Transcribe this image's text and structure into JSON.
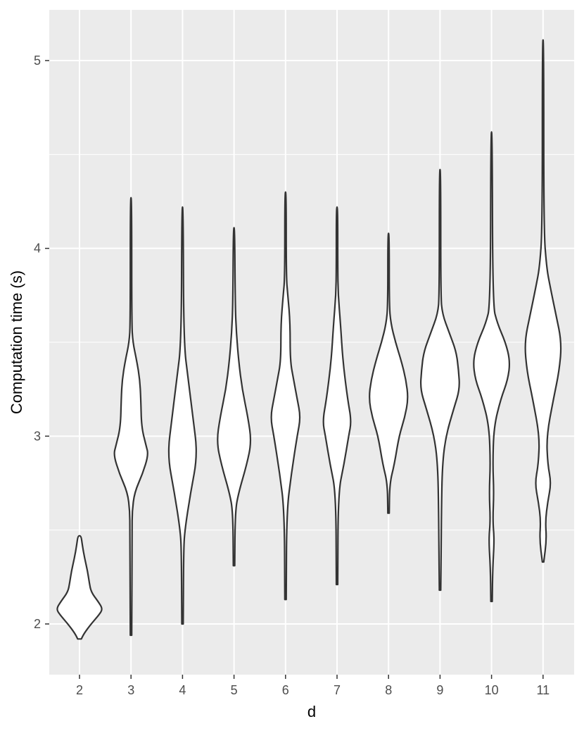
{
  "chart_data": {
    "type": "violin",
    "xlabel": "d",
    "ylabel": "Computation time (s)",
    "categories": [
      "2",
      "3",
      "4",
      "5",
      "6",
      "7",
      "8",
      "9",
      "10",
      "11"
    ],
    "yticks": [
      "2",
      "3",
      "4",
      "5"
    ],
    "ylim": [
      1.73,
      5.27
    ],
    "grid": true,
    "violins": [
      {
        "category": "2",
        "min": 1.92,
        "max": 2.47,
        "profile": [
          [
            1.92,
            0.08
          ],
          [
            1.95,
            0.2
          ],
          [
            2.0,
            0.5
          ],
          [
            2.05,
            0.85
          ],
          [
            2.08,
            1.0
          ],
          [
            2.12,
            0.8
          ],
          [
            2.17,
            0.5
          ],
          [
            2.22,
            0.42
          ],
          [
            2.28,
            0.35
          ],
          [
            2.35,
            0.22
          ],
          [
            2.42,
            0.12
          ],
          [
            2.47,
            0.07
          ]
        ]
      },
      {
        "category": "3",
        "min": 1.94,
        "max": 4.27,
        "profile": [
          [
            1.94,
            0.03
          ],
          [
            2.5,
            0.05
          ],
          [
            2.6,
            0.05
          ],
          [
            2.7,
            0.15
          ],
          [
            2.8,
            0.5
          ],
          [
            2.9,
            0.75
          ],
          [
            2.95,
            0.65
          ],
          [
            3.05,
            0.45
          ],
          [
            3.2,
            0.42
          ],
          [
            3.3,
            0.38
          ],
          [
            3.4,
            0.25
          ],
          [
            3.5,
            0.08
          ],
          [
            3.6,
            0.03
          ],
          [
            4.27,
            0.03
          ]
        ]
      },
      {
        "category": "4",
        "min": 2.0,
        "max": 4.22,
        "profile": [
          [
            2.0,
            0.03
          ],
          [
            2.4,
            0.05
          ],
          [
            2.5,
            0.1
          ],
          [
            2.7,
            0.35
          ],
          [
            2.9,
            0.65
          ],
          [
            3.1,
            0.45
          ],
          [
            3.3,
            0.25
          ],
          [
            3.5,
            0.05
          ],
          [
            4.22,
            0.03
          ]
        ]
      },
      {
        "category": "5",
        "min": 2.31,
        "max": 4.11,
        "profile": [
          [
            2.31,
            0.03
          ],
          [
            2.6,
            0.05
          ],
          [
            2.7,
            0.2
          ],
          [
            2.85,
            0.55
          ],
          [
            2.97,
            0.75
          ],
          [
            3.1,
            0.6
          ],
          [
            3.25,
            0.35
          ],
          [
            3.4,
            0.2
          ],
          [
            3.55,
            0.1
          ],
          [
            3.7,
            0.05
          ],
          [
            4.11,
            0.03
          ]
        ]
      },
      {
        "category": "6",
        "min": 2.13,
        "max": 4.3,
        "profile": [
          [
            2.13,
            0.03
          ],
          [
            2.6,
            0.05
          ],
          [
            2.8,
            0.25
          ],
          [
            3.0,
            0.5
          ],
          [
            3.1,
            0.65
          ],
          [
            3.2,
            0.5
          ],
          [
            3.3,
            0.35
          ],
          [
            3.4,
            0.2
          ],
          [
            3.6,
            0.2
          ],
          [
            3.75,
            0.1
          ],
          [
            3.85,
            0.03
          ],
          [
            4.3,
            0.03
          ]
        ]
      },
      {
        "category": "7",
        "min": 2.21,
        "max": 4.22,
        "profile": [
          [
            2.21,
            0.03
          ],
          [
            2.7,
            0.05
          ],
          [
            2.85,
            0.3
          ],
          [
            3.0,
            0.5
          ],
          [
            3.08,
            0.62
          ],
          [
            3.2,
            0.45
          ],
          [
            3.4,
            0.25
          ],
          [
            3.6,
            0.15
          ],
          [
            3.75,
            0.05
          ],
          [
            3.9,
            0.03
          ],
          [
            4.22,
            0.03
          ]
        ]
      },
      {
        "category": "8",
        "min": 2.59,
        "max": 4.08,
        "profile": [
          [
            2.59,
            0.03
          ],
          [
            2.75,
            0.05
          ],
          [
            2.85,
            0.25
          ],
          [
            3.0,
            0.45
          ],
          [
            3.1,
            0.7
          ],
          [
            3.2,
            0.85
          ],
          [
            3.3,
            0.75
          ],
          [
            3.4,
            0.55
          ],
          [
            3.5,
            0.3
          ],
          [
            3.6,
            0.1
          ],
          [
            3.7,
            0.03
          ],
          [
            4.08,
            0.03
          ]
        ]
      },
      {
        "category": "9",
        "min": 2.18,
        "max": 4.42,
        "profile": [
          [
            2.18,
            0.03
          ],
          [
            2.4,
            0.05
          ],
          [
            2.6,
            0.06
          ],
          [
            2.85,
            0.1
          ],
          [
            3.0,
            0.25
          ],
          [
            3.15,
            0.6
          ],
          [
            3.25,
            0.85
          ],
          [
            3.35,
            0.8
          ],
          [
            3.45,
            0.7
          ],
          [
            3.55,
            0.4
          ],
          [
            3.65,
            0.1
          ],
          [
            3.75,
            0.03
          ],
          [
            4.42,
            0.03
          ]
        ]
      },
      {
        "category": "10",
        "min": 2.12,
        "max": 4.62,
        "profile": [
          [
            2.12,
            0.03
          ],
          [
            2.3,
            0.05
          ],
          [
            2.45,
            0.12
          ],
          [
            2.55,
            0.05
          ],
          [
            2.7,
            0.1
          ],
          [
            2.85,
            0.05
          ],
          [
            3.05,
            0.1
          ],
          [
            3.2,
            0.4
          ],
          [
            3.3,
            0.7
          ],
          [
            3.4,
            0.8
          ],
          [
            3.5,
            0.6
          ],
          [
            3.6,
            0.25
          ],
          [
            3.7,
            0.05
          ],
          [
            4.62,
            0.03
          ]
        ]
      },
      {
        "category": "11",
        "min": 2.33,
        "max": 5.11,
        "profile": [
          [
            2.33,
            0.03
          ],
          [
            2.45,
            0.15
          ],
          [
            2.55,
            0.1
          ],
          [
            2.65,
            0.2
          ],
          [
            2.75,
            0.35
          ],
          [
            2.85,
            0.2
          ],
          [
            3.0,
            0.15
          ],
          [
            3.2,
            0.45
          ],
          [
            3.35,
            0.7
          ],
          [
            3.5,
            0.8
          ],
          [
            3.65,
            0.55
          ],
          [
            3.8,
            0.3
          ],
          [
            3.9,
            0.15
          ],
          [
            4.1,
            0.03
          ],
          [
            5.11,
            0.03
          ]
        ]
      }
    ]
  }
}
